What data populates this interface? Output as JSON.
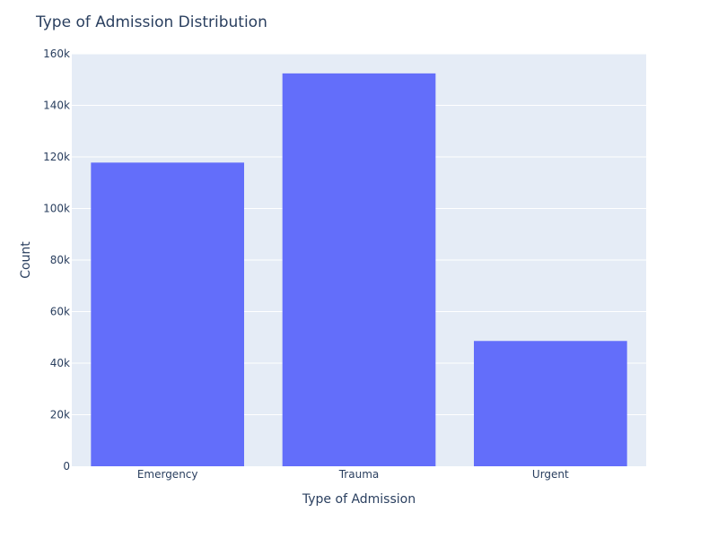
{
  "chart_data": {
    "type": "bar",
    "title": "Type of Admission Distribution",
    "xlabel": "Type of Admission",
    "ylabel": "Count",
    "categories": [
      "Emergency",
      "Trauma",
      "Urgent"
    ],
    "values": [
      117800,
      152400,
      48600
    ],
    "ylim": [
      0,
      160000
    ],
    "yticks": [
      0,
      20000,
      40000,
      60000,
      80000,
      100000,
      120000,
      140000,
      160000
    ],
    "ytick_labels": [
      "0",
      "20k",
      "40k",
      "60k",
      "80k",
      "100k",
      "120k",
      "140k",
      "160k"
    ],
    "grid": true,
    "colors": {
      "bar": "#636efa",
      "plot_background": "#e5ecf6",
      "grid": "#ffffff",
      "text": "#2a3f5f"
    }
  }
}
